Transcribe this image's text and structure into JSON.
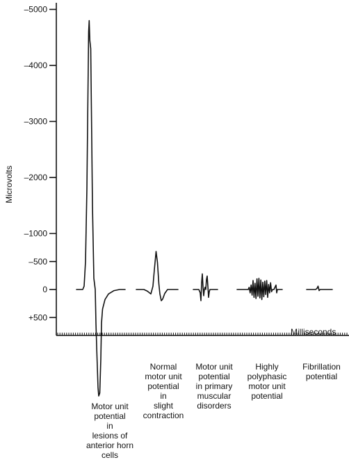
{
  "chart_data": {
    "type": "line",
    "ylabel": "Microvolts",
    "xlabel": "Milliseconds",
    "y_tick_labels": [
      "–5000",
      "–4000",
      "–3000",
      "–2000",
      "–1000",
      "–500",
      "0",
      "+500"
    ],
    "y_tick_values": [
      -5000,
      -4000,
      -3000,
      -2000,
      -1000,
      -500,
      0,
      500
    ],
    "ylim": [
      -5000,
      500
    ],
    "y_direction": "negative values plotted upward",
    "grid": false,
    "series": [
      {
        "caption": "Motor unit\npotential\nin\nlesions of\nanterior horn\ncells",
        "peak_uV": -4800,
        "trough_uV": 1900
      },
      {
        "caption": "Normal\nmotor unit\npotential\nin\nslight\ncontraction",
        "peak_uV": -680,
        "trough_uV": 200
      },
      {
        "caption": "Motor unit\npotential\nin primary\nmuscular\ndisorders",
        "peak_uV": -280,
        "trough_uV": 200
      },
      {
        "caption": "Highly\npolyphasic\nmotor unit\npotential",
        "peak_uV": -200,
        "trough_uV": 180
      },
      {
        "caption": "Fibrillation\npotential",
        "peak_uV": -60,
        "trough_uV": 20
      }
    ]
  }
}
